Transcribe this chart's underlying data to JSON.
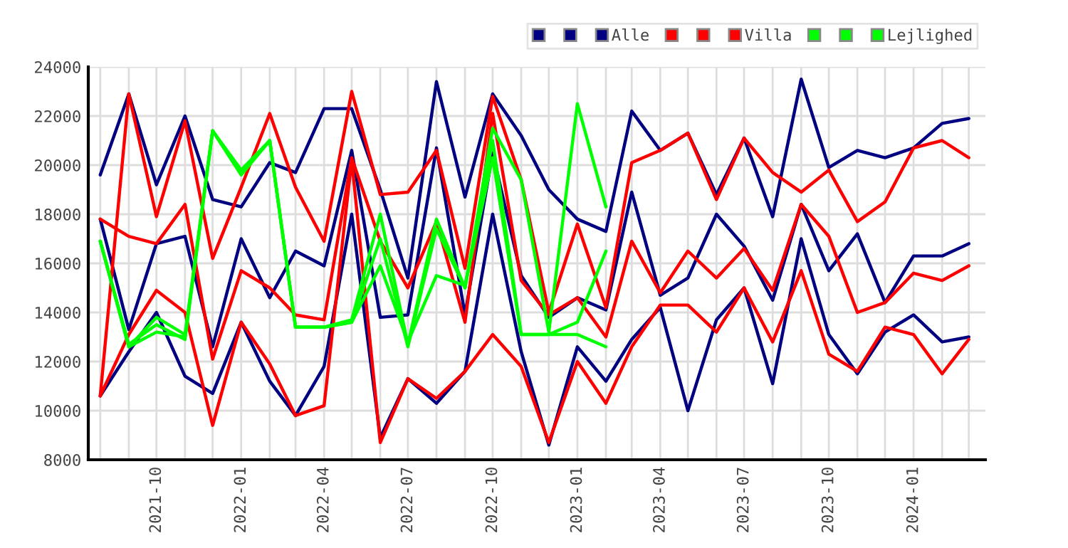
{
  "chart_data": {
    "type": "line",
    "x": [
      "2021-08",
      "2021-09",
      "2021-10",
      "2021-11",
      "2021-12",
      "2022-01",
      "2022-02",
      "2022-03",
      "2022-04",
      "2022-05",
      "2022-06",
      "2022-07",
      "2022-08",
      "2022-09",
      "2022-10",
      "2022-11",
      "2022-12",
      "2023-01",
      "2023-02",
      "2023-03",
      "2023-04",
      "2023-05",
      "2023-06",
      "2023-07",
      "2023-08",
      "2023-09",
      "2023-10",
      "2023-11",
      "2023-12",
      "2024-01",
      "2024-02",
      "2024-03"
    ],
    "series": [
      {
        "color": "#000080",
        "values": [
          19600,
          22900,
          19200,
          22000,
          18600,
          18300,
          20100,
          19700,
          22300,
          22300,
          19000,
          15400,
          23400,
          18700,
          22900,
          21200,
          19000,
          17800,
          17300,
          22200,
          20600,
          21300,
          18800,
          21100,
          17900,
          23500,
          19900,
          20600,
          20300,
          20700,
          21700,
          21900
        ]
      },
      {
        "color": "#000080",
        "values": [
          17800,
          13300,
          16800,
          17100,
          12600,
          17000,
          14600,
          16500,
          15900,
          20600,
          13800,
          13900,
          20700,
          13900,
          20500,
          15500,
          13800,
          14600,
          14100,
          18900,
          14700,
          15400,
          18000,
          16700,
          14500,
          18400,
          15700,
          17200,
          14400,
          16300,
          16300,
          16800
        ]
      },
      {
        "name": "Alle",
        "color": "#000080",
        "values": [
          10600,
          12400,
          14000,
          11400,
          10700,
          13600,
          11200,
          9800,
          11800,
          18000,
          8900,
          11300,
          10300,
          11600,
          18000,
          12400,
          8600,
          12600,
          11200,
          12900,
          14200,
          10000,
          13700,
          15000,
          11100,
          17000,
          13100,
          11500,
          13200,
          13900,
          12800,
          13000
        ]
      },
      {
        "color": "#ff0000",
        "values": [
          10600,
          22900,
          17900,
          21800,
          16200,
          19100,
          22100,
          19100,
          16900,
          23000,
          18800,
          18900,
          20600,
          15800,
          22800,
          19400,
          14000,
          17600,
          14200,
          20100,
          20600,
          21300,
          18600,
          21100,
          19700,
          18900,
          19800,
          17700,
          18500,
          20700,
          21000,
          20300
        ]
      },
      {
        "color": "#ff0000",
        "values": [
          17800,
          17100,
          16800,
          18400,
          12100,
          15700,
          15000,
          13900,
          13700,
          20300,
          16900,
          15000,
          17700,
          13600,
          22100,
          15300,
          13900,
          14600,
          13000,
          16900,
          14800,
          16500,
          15400,
          16600,
          14900,
          18400,
          17100,
          14000,
          14400,
          15600,
          15300,
          15900
        ]
      },
      {
        "name": "Villa",
        "color": "#ff0000",
        "values": [
          10600,
          13100,
          14900,
          14000,
          9400,
          13600,
          11900,
          9800,
          10200,
          20200,
          8700,
          11300,
          10500,
          11600,
          13100,
          11800,
          8700,
          12000,
          10300,
          12600,
          14300,
          14300,
          13200,
          15000,
          12800,
          15700,
          12300,
          11600,
          13400,
          13100,
          11500,
          12900
        ]
      },
      {
        "color": "#00ff00",
        "x": [
          "2021-08",
          "2021-09",
          "2021-10",
          "2021-11",
          "2021-12",
          "2022-01",
          "2022-02",
          "2022-03",
          "2022-04",
          "2022-05",
          "2022-06",
          "2022-07",
          "2022-08",
          "2022-09",
          "2022-10",
          "2022-11",
          "2022-12",
          "2023-01",
          "2023-02"
        ],
        "values": [
          16900,
          12700,
          13500,
          12900,
          21400,
          19800,
          21000,
          13400,
          13400,
          13700,
          18000,
          12700,
          17800,
          15000,
          21500,
          19400,
          13200,
          22500,
          18300
        ]
      },
      {
        "color": "#00ff00",
        "x": [
          "2021-08",
          "2021-09",
          "2021-10",
          "2021-11",
          "2021-12",
          "2022-01",
          "2022-02",
          "2022-03",
          "2022-04",
          "2022-05",
          "2022-06",
          "2022-07",
          "2022-08",
          "2022-09",
          "2022-10",
          "2022-11",
          "2022-12",
          "2023-01",
          "2023-02"
        ],
        "values": [
          16900,
          12600,
          13800,
          13100,
          21400,
          19600,
          21000,
          13400,
          13400,
          13600,
          17000,
          12600,
          17400,
          15000,
          21000,
          13100,
          13100,
          13100,
          12600
        ]
      },
      {
        "name": "Lejlighed",
        "color": "#00ff00",
        "x": [
          "2021-08",
          "2021-09",
          "2021-10",
          "2021-11",
          "2021-12",
          "2022-01",
          "2022-02",
          "2022-03",
          "2022-04",
          "2022-05",
          "2022-06",
          "2022-07",
          "2022-08",
          "2022-09",
          "2022-10",
          "2022-11",
          "2022-12",
          "2023-01",
          "2023-02"
        ],
        "values": [
          16900,
          12600,
          13200,
          13000,
          21400,
          19700,
          21000,
          13400,
          13400,
          13600,
          15900,
          12800,
          15500,
          15100,
          20300,
          13100,
          13100,
          13600,
          16500
        ]
      }
    ],
    "xlim": [
      "2021-07-19",
      "2024-03-19"
    ],
    "xticks": [
      {
        "value": "2021-08",
        "label": null
      },
      {
        "value": "2021-09",
        "label": null
      },
      "2021-10",
      {
        "value": "2021-11",
        "label": null
      },
      {
        "value": "2021-12",
        "label": null
      },
      "2022-01",
      {
        "value": "2022-02",
        "label": null
      },
      {
        "value": "2022-03",
        "label": null
      },
      "2022-04",
      {
        "value": "2022-05",
        "label": null
      },
      {
        "value": "2022-06",
        "label": null
      },
      "2022-07",
      {
        "value": "2022-08",
        "label": null
      },
      {
        "value": "2022-09",
        "label": null
      },
      "2022-10",
      {
        "value": "2022-11",
        "label": null
      },
      {
        "value": "2022-12",
        "label": null
      },
      "2023-01",
      {
        "value": "2023-02",
        "label": null
      },
      {
        "value": "2023-03",
        "label": null
      },
      "2023-04",
      {
        "value": "2023-05",
        "label": null
      },
      {
        "value": "2023-06",
        "label": null
      },
      "2023-07",
      {
        "value": "2023-08",
        "label": null
      },
      {
        "value": "2023-09",
        "label": null
      },
      "2023-10",
      {
        "value": "2023-11",
        "label": null
      },
      {
        "value": "2023-12",
        "label": null
      },
      "2024-01",
      {
        "value": "2024-02",
        "label": null
      },
      {
        "value": "2024-03",
        "label": null
      }
    ],
    "ylim": [
      8000,
      24000
    ],
    "yticks": [
      8000,
      10000,
      12000,
      14000,
      16000,
      18000,
      20000,
      22000,
      24000
    ],
    "grid": true,
    "legend": "top right",
    "marker": "none",
    "line_style": "solid"
  }
}
